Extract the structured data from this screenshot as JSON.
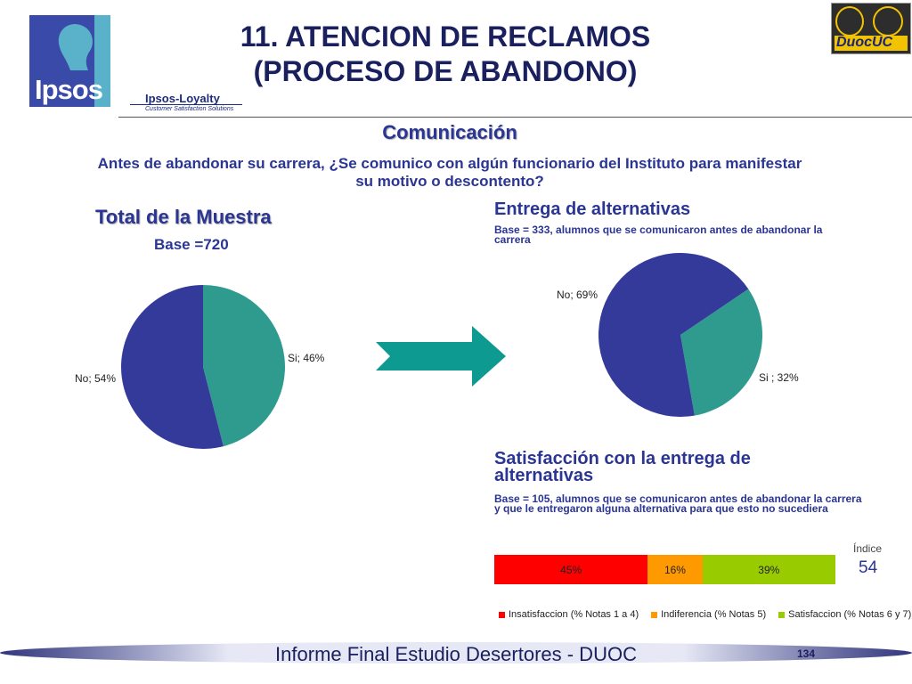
{
  "header": {
    "title_line1": "11. ATENCION DE RECLAMOS",
    "title_line2": "(PROCESO DE ABANDONO)",
    "logo_ipsos": "Ipsos",
    "logo_loyalty": "Ipsos-Loyalty",
    "logo_loyalty_sub": "Customer Satisfaction Solutions",
    "logo_duoc": "DuocUC"
  },
  "section_title": "Comunicación",
  "question": "Antes de abandonar su carrera, ¿Se comunico con algún funcionario del Instituto para manifestar su motivo o descontento?",
  "total": {
    "title": "Total de la Muestra",
    "base": "Base =720"
  },
  "alternatives": {
    "title": "Entrega de alternativas",
    "base": "Base = 333, alumnos que se comunicaron antes de abandonar la carrera"
  },
  "satisfaction": {
    "title": "Satisfacción con la entrega de alternativas",
    "base": "Base = 105, alumnos que se comunicaron antes de abandonar la carrera y que le entregaron alguna alternativa para que esto no sucediera",
    "indice_label": "Índice",
    "indice_value": "54"
  },
  "colors": {
    "teal": "#2f9b8f",
    "navy": "#333a99",
    "red": "#ff0000",
    "orange": "#ff9900",
    "green": "#99cc00",
    "arrow": "#0c9a91"
  },
  "chart_data": [
    {
      "type": "pie",
      "title": "Total de la Muestra",
      "slices": [
        {
          "label": "Si; 46%",
          "name": "Si",
          "value": 46,
          "color": "#2f9b8f"
        },
        {
          "label": "No; 54%",
          "name": "No",
          "value": 54,
          "color": "#333a99"
        }
      ]
    },
    {
      "type": "pie",
      "title": "Entrega de alternativas",
      "slices": [
        {
          "label": "Si ; 32%",
          "name": "Si",
          "value": 32,
          "color": "#2f9b8f"
        },
        {
          "label": "No; 69%",
          "name": "No",
          "value": 69,
          "color": "#333a99"
        }
      ]
    },
    {
      "type": "bar",
      "title": "Satisfacción con la entrega de alternativas",
      "stacked": true,
      "orientation": "horizontal",
      "series": [
        {
          "name": "Insatisfaccion (% Notas 1 a 4)",
          "values": [
            45
          ],
          "label": "45%",
          "color": "#ff0000"
        },
        {
          "name": "Indiferencia (% Notas 5)",
          "values": [
            16
          ],
          "label": "16%",
          "color": "#ff9900"
        },
        {
          "name": "Satisfaccion (% Notas 6 y 7)",
          "values": [
            39
          ],
          "label": "39%",
          "color": "#99cc00"
        }
      ],
      "legend": "bottom"
    }
  ],
  "footer": {
    "text": "Informe Final Estudio Desertores - DUOC",
    "page": "134"
  }
}
